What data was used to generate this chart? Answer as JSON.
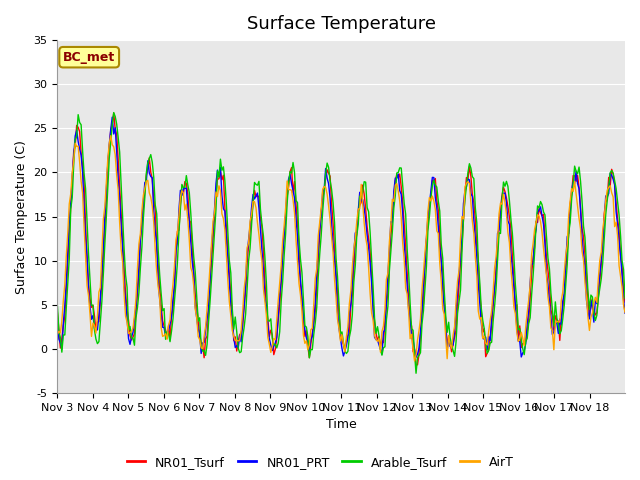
{
  "title": "Surface Temperature",
  "ylabel": "Surface Temperature (C)",
  "xlabel": "Time",
  "ylim": [
    -5,
    35
  ],
  "xtick_labels": [
    "Nov 3",
    "Nov 4",
    "Nov 5",
    "Nov 6",
    "Nov 7",
    "Nov 8",
    "Nov 9",
    "Nov 10",
    "Nov 11",
    "Nov 12",
    "Nov 13",
    "Nov 14",
    "Nov 15",
    "Nov 16",
    "Nov 17",
    "Nov 18"
  ],
  "ytick_values": [
    -5,
    0,
    5,
    10,
    15,
    20,
    25,
    30,
    35
  ],
  "annotation_text": "BC_met",
  "annotation_color": "#8B0000",
  "annotation_bg": "#FFFF99",
  "annotation_edge": "#AA8800",
  "series": [
    {
      "name": "NR01_Tsurf",
      "color": "#FF0000"
    },
    {
      "name": "NR01_PRT",
      "color": "#0000FF"
    },
    {
      "name": "Arable_Tsurf",
      "color": "#00CC00"
    },
    {
      "name": "AirT",
      "color": "#FFA500"
    }
  ],
  "bg_color": "#E8E8E8",
  "fig_bg": "#FFFFFF",
  "grid_color": "#FFFFFF",
  "title_fontsize": 13,
  "label_fontsize": 9,
  "tick_fontsize": 8,
  "n_days": 16,
  "amps": [
    12,
    12,
    10,
    9,
    10,
    9,
    10,
    10,
    9,
    10,
    10,
    10,
    9,
    8,
    9,
    8
  ],
  "offs": [
    13,
    14,
    11,
    10,
    10,
    9,
    10,
    10,
    9,
    10,
    9,
    10,
    9,
    8,
    11,
    12
  ]
}
